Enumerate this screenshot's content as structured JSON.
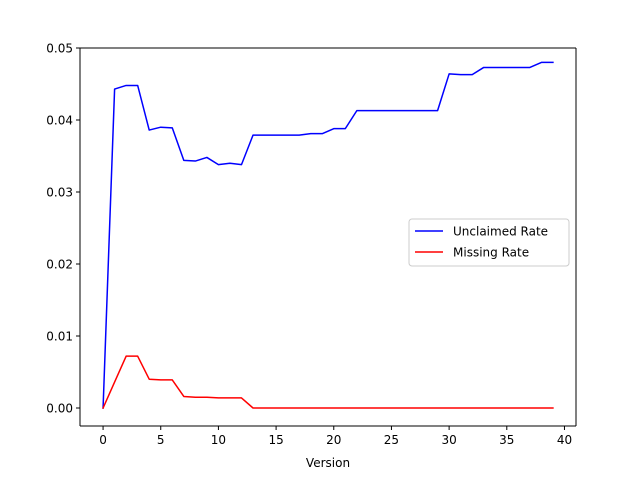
{
  "chart_data": {
    "type": "line",
    "title": "",
    "xlabel": "Version",
    "ylabel": "",
    "xlim": [
      -2,
      41
    ],
    "ylim": [
      -0.0025,
      0.05
    ],
    "xticks": [
      0,
      5,
      10,
      15,
      20,
      25,
      30,
      35,
      40
    ],
    "yticks": [
      0.0,
      0.01,
      0.02,
      0.03,
      0.04,
      0.05
    ],
    "ytick_labels": [
      "0.00",
      "0.01",
      "0.02",
      "0.03",
      "0.04",
      "0.05"
    ],
    "grid": false,
    "legend_position": "center-right",
    "x": [
      0,
      1,
      2,
      3,
      4,
      5,
      6,
      7,
      8,
      9,
      10,
      11,
      12,
      13,
      14,
      15,
      16,
      17,
      18,
      19,
      20,
      21,
      22,
      23,
      24,
      25,
      26,
      27,
      28,
      29,
      30,
      31,
      32,
      33,
      34,
      35,
      36,
      37,
      38,
      39
    ],
    "series": [
      {
        "name": "Unclaimed Rate",
        "color": "#0000ff",
        "values": [
          0.0,
          0.0443,
          0.0448,
          0.0448,
          0.0386,
          0.039,
          0.0389,
          0.0344,
          0.0343,
          0.0348,
          0.0338,
          0.034,
          0.0338,
          0.0379,
          0.0379,
          0.0379,
          0.0379,
          0.0379,
          0.0381,
          0.0381,
          0.0388,
          0.0388,
          0.0413,
          0.0413,
          0.0413,
          0.0413,
          0.0413,
          0.0413,
          0.0413,
          0.0413,
          0.0464,
          0.0463,
          0.0463,
          0.0473,
          0.0473,
          0.0473,
          0.0473,
          0.0473,
          0.048,
          0.048
        ]
      },
      {
        "name": "Missing Rate",
        "color": "#ff0000",
        "values": [
          0.0,
          0.0036,
          0.0072,
          0.0072,
          0.004,
          0.0039,
          0.0039,
          0.0016,
          0.0015,
          0.0015,
          0.0014,
          0.0014,
          0.0014,
          0.0,
          0.0,
          0.0,
          0.0,
          0.0,
          0.0,
          0.0,
          0.0,
          0.0,
          0.0,
          0.0,
          0.0,
          0.0,
          0.0,
          0.0,
          0.0,
          0.0,
          0.0,
          0.0,
          0.0,
          0.0,
          0.0,
          0.0,
          0.0,
          0.0,
          0.0,
          0.0
        ]
      }
    ]
  }
}
